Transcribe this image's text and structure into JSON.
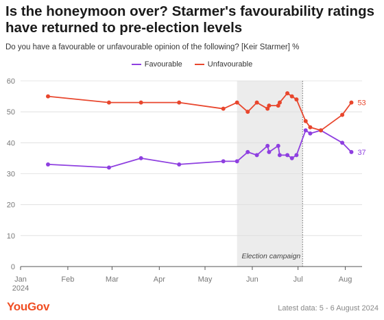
{
  "title": "Is the honeymoon over? Starmer's favourability ratings have returned to pre-election levels",
  "subtitle": "Do you have a favourable or unfavourable opinion of the following? [Keir Starmer] %",
  "footer": {
    "brand": "YouGov",
    "note": "Latest data: 5 - 6 August 2024"
  },
  "chart_data": {
    "type": "line",
    "title": "Is the honeymoon over? Starmer's favourability ratings have returned to pre-election levels",
    "subtitle": "Do you have a favourable or unfavourable opinion of the following? [Keir Starmer] %",
    "xlabel": "",
    "ylabel": "",
    "ylim": [
      0,
      60
    ],
    "yticks": [
      0,
      10,
      20,
      30,
      40,
      50,
      60
    ],
    "grid": true,
    "legend_position": "top-center",
    "x_range": [
      "2024-01-01",
      "2024-08-12"
    ],
    "x_ticks": [
      {
        "date": "2024-01-01",
        "label": "Jan",
        "sublabel": "2024"
      },
      {
        "date": "2024-02-01",
        "label": "Feb"
      },
      {
        "date": "2024-03-01",
        "label": "Mar"
      },
      {
        "date": "2024-04-01",
        "label": "Apr"
      },
      {
        "date": "2024-05-01",
        "label": "May"
      },
      {
        "date": "2024-06-01",
        "label": "Jun"
      },
      {
        "date": "2024-07-01",
        "label": "Jul"
      },
      {
        "date": "2024-08-01",
        "label": "Aug"
      }
    ],
    "shaded_region": {
      "start": "2024-05-22",
      "end": "2024-07-04",
      "label": "Election campaign"
    },
    "series": [
      {
        "name": "Favourable",
        "color": "#8e3fe0",
        "end_label": "37",
        "points": [
          {
            "x": "2024-01-19",
            "y": 33
          },
          {
            "x": "2024-02-28",
            "y": 32
          },
          {
            "x": "2024-03-20",
            "y": 35
          },
          {
            "x": "2024-04-14",
            "y": 33
          },
          {
            "x": "2024-05-13",
            "y": 34
          },
          {
            "x": "2024-05-22",
            "y": 34
          },
          {
            "x": "2024-05-29",
            "y": 37
          },
          {
            "x": "2024-06-04",
            "y": 36
          },
          {
            "x": "2024-06-11",
            "y": 39
          },
          {
            "x": "2024-06-12",
            "y": 37
          },
          {
            "x": "2024-06-18",
            "y": 39
          },
          {
            "x": "2024-06-19",
            "y": 36
          },
          {
            "x": "2024-06-24",
            "y": 36
          },
          {
            "x": "2024-06-27",
            "y": 35
          },
          {
            "x": "2024-06-30",
            "y": 36
          },
          {
            "x": "2024-07-06",
            "y": 44
          },
          {
            "x": "2024-07-09",
            "y": 43
          },
          {
            "x": "2024-07-16",
            "y": 44
          },
          {
            "x": "2024-07-30",
            "y": 40
          },
          {
            "x": "2024-08-05",
            "y": 37
          }
        ]
      },
      {
        "name": "Unfavourable",
        "color": "#e8462d",
        "end_label": "53",
        "points": [
          {
            "x": "2024-01-19",
            "y": 55
          },
          {
            "x": "2024-02-28",
            "y": 53
          },
          {
            "x": "2024-03-20",
            "y": 53
          },
          {
            "x": "2024-04-14",
            "y": 53
          },
          {
            "x": "2024-05-13",
            "y": 51
          },
          {
            "x": "2024-05-22",
            "y": 53
          },
          {
            "x": "2024-05-29",
            "y": 50
          },
          {
            "x": "2024-06-04",
            "y": 53
          },
          {
            "x": "2024-06-11",
            "y": 51
          },
          {
            "x": "2024-06-12",
            "y": 52
          },
          {
            "x": "2024-06-18",
            "y": 52
          },
          {
            "x": "2024-06-19",
            "y": 53
          },
          {
            "x": "2024-06-24",
            "y": 56
          },
          {
            "x": "2024-06-27",
            "y": 55
          },
          {
            "x": "2024-06-30",
            "y": 54
          },
          {
            "x": "2024-07-06",
            "y": 47
          },
          {
            "x": "2024-07-09",
            "y": 45
          },
          {
            "x": "2024-07-16",
            "y": 44
          },
          {
            "x": "2024-07-30",
            "y": 49
          },
          {
            "x": "2024-08-05",
            "y": 53
          }
        ]
      }
    ]
  }
}
